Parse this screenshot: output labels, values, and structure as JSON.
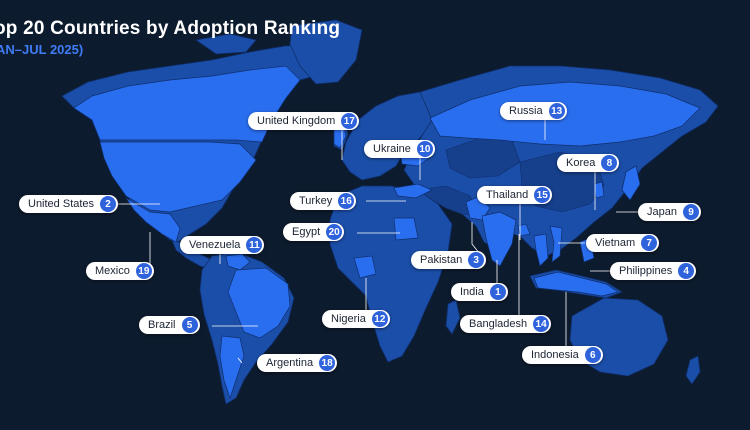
{
  "title": "op 20 Countries by Adoption Ranking",
  "subtitle": "AN–JUL 2025)",
  "colors": {
    "background": "#0d1b2e",
    "land": "#1b4ea8",
    "land_dark": "#163f8c",
    "highlight": "#2a6ef0",
    "pill_background": "#ffffff",
    "rank_badge": "#2f63dc",
    "subtitle": "#3f7cf5"
  },
  "labels": [
    {
      "key": "united-states",
      "name": "United States",
      "rank": "2"
    },
    {
      "key": "united-kingdom",
      "name": "United Kingdom",
      "rank": "17"
    },
    {
      "key": "ukraine",
      "name": "Ukraine",
      "rank": "10"
    },
    {
      "key": "russia",
      "name": "Russia",
      "rank": "13"
    },
    {
      "key": "korea",
      "name": "Korea",
      "rank": "8"
    },
    {
      "key": "turkey",
      "name": "Turkey",
      "rank": "16"
    },
    {
      "key": "thailand",
      "name": "Thailand",
      "rank": "15"
    },
    {
      "key": "japan",
      "name": "Japan",
      "rank": "9"
    },
    {
      "key": "venezuela",
      "name": "Venezuela",
      "rank": "11"
    },
    {
      "key": "egypt",
      "name": "Egypt",
      "rank": "20"
    },
    {
      "key": "vietnam",
      "name": "Vietnam",
      "rank": "7"
    },
    {
      "key": "pakistan",
      "name": "Pakistan",
      "rank": "3"
    },
    {
      "key": "mexico",
      "name": "Mexico",
      "rank": "19"
    },
    {
      "key": "philippines",
      "name": "Philippines",
      "rank": "4"
    },
    {
      "key": "india",
      "name": "India",
      "rank": "1"
    },
    {
      "key": "nigeria",
      "name": "Nigeria",
      "rank": "12"
    },
    {
      "key": "brazil",
      "name": "Brazil",
      "rank": "5"
    },
    {
      "key": "bangladesh",
      "name": "Bangladesh",
      "rank": "14"
    },
    {
      "key": "argentina",
      "name": "Argentina",
      "rank": "18"
    },
    {
      "key": "indonesia",
      "name": "Indonesia",
      "rank": "6"
    }
  ]
}
